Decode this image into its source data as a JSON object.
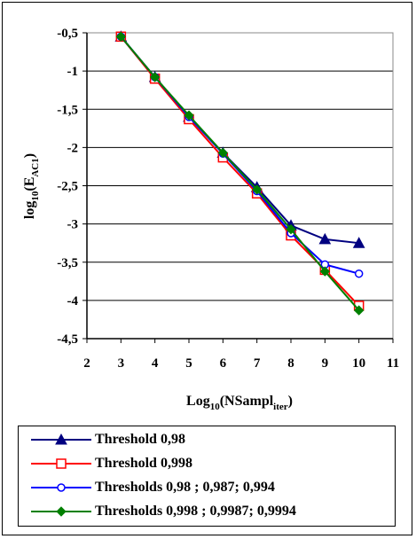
{
  "chart_data": {
    "type": "line",
    "xlabel_main": "Log",
    "xlabel_sub": "10",
    "xlabel_arg": "(NSampl",
    "xlabel_arg_sub": "iter",
    "xlabel_close": ")",
    "ylabel_main": "log",
    "ylabel_sub": "10",
    "ylabel_arg": "(E",
    "ylabel_arg_sub": "AC1",
    "ylabel_close": ")",
    "xlim": [
      2,
      11
    ],
    "ylim": [
      -4.5,
      -0.5
    ],
    "x_ticks": [
      2,
      3,
      4,
      5,
      6,
      7,
      8,
      9,
      10,
      11
    ],
    "x_tick_labels": [
      "2",
      "3",
      "4",
      "5",
      "6",
      "7",
      "8",
      "9",
      "10",
      "11"
    ],
    "y_ticks": [
      -0.5,
      -1,
      -1.5,
      -2,
      -2.5,
      -3,
      -3.5,
      -4,
      -4.5
    ],
    "y_tick_labels": [
      "-0,5",
      "-1",
      "-1,5",
      "-2",
      "-2,5",
      "-3",
      "-3,5",
      "-4",
      "-4,5"
    ],
    "grid": "horizontal",
    "legend_position": "bottom",
    "series": [
      {
        "name": "Threshold 0,98",
        "color": "#000080",
        "marker": "triangle",
        "x": [
          3,
          4,
          5,
          6,
          7,
          8,
          9,
          10
        ],
        "y": [
          -0.55,
          -1.08,
          -1.6,
          -2.07,
          -2.52,
          -3.02,
          -3.2,
          -3.25
        ]
      },
      {
        "name": "Threshold 0,998",
        "color": "#ff0000",
        "marker": "square-open",
        "x": [
          3,
          4,
          5,
          6,
          7,
          8,
          9,
          10
        ],
        "y": [
          -0.55,
          -1.1,
          -1.63,
          -2.13,
          -2.6,
          -3.15,
          -3.6,
          -4.07
        ]
      },
      {
        "name": "Thresholds 0,98 ; 0,987; 0,994",
        "color": "#0000ff",
        "marker": "circle-open",
        "x": [
          3,
          4,
          5,
          6,
          7,
          8,
          9,
          10
        ],
        "y": [
          -0.55,
          -1.08,
          -1.6,
          -2.08,
          -2.57,
          -3.12,
          -3.53,
          -3.65
        ]
      },
      {
        "name": "Thresholds 0,998 ; 0,9987; 0,9994",
        "color": "#008000",
        "marker": "diamond",
        "x": [
          3,
          4,
          5,
          6,
          7,
          8,
          9,
          10
        ],
        "y": [
          -0.55,
          -1.08,
          -1.58,
          -2.07,
          -2.55,
          -3.07,
          -3.62,
          -4.13
        ]
      }
    ]
  }
}
